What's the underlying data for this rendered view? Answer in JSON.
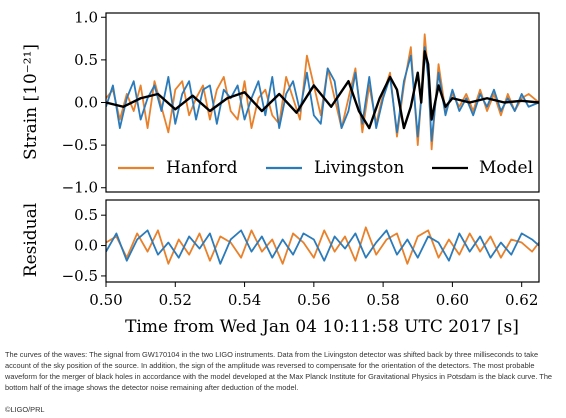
{
  "chart_data": [
    {
      "type": "line",
      "panel": "strain",
      "title": "",
      "xlabel": "",
      "ylabel": "Strain [10⁻²¹]",
      "xlim": [
        0.5,
        0.625
      ],
      "ylim": [
        -1.05,
        1.05
      ],
      "yticks": [
        -1.0,
        -0.5,
        0.0,
        0.5,
        1.0
      ],
      "ytick_labels": [
        "−1.0",
        "−0.5",
        "0.0",
        "0.5",
        "1.0"
      ],
      "legend": "bottom",
      "grid": false,
      "series": [
        {
          "name": "Hanford",
          "color": "#e8812c",
          "x": [
            0.5,
            0.502,
            0.504,
            0.506,
            0.508,
            0.51,
            0.512,
            0.514,
            0.516,
            0.518,
            0.52,
            0.522,
            0.524,
            0.526,
            0.528,
            0.53,
            0.532,
            0.534,
            0.536,
            0.538,
            0.54,
            0.542,
            0.544,
            0.546,
            0.548,
            0.55,
            0.552,
            0.554,
            0.556,
            0.558,
            0.56,
            0.562,
            0.564,
            0.566,
            0.568,
            0.57,
            0.572,
            0.574,
            0.576,
            0.578,
            0.58,
            0.582,
            0.584,
            0.586,
            0.588,
            0.59,
            0.591,
            0.592,
            0.593,
            0.594,
            0.596,
            0.598,
            0.6,
            0.602,
            0.604,
            0.606,
            0.608,
            0.61,
            0.612,
            0.614,
            0.616,
            0.618,
            0.62,
            0.622,
            0.625
          ],
          "y": [
            0.05,
            0.15,
            -0.2,
            0.1,
            -0.1,
            0.2,
            -0.3,
            0.25,
            -0.05,
            -0.35,
            0.15,
            0.25,
            -0.15,
            0.05,
            0.2,
            -0.2,
            0.15,
            0.3,
            -0.1,
            -0.2,
            0.25,
            -0.3,
            0.05,
            0.15,
            -0.15,
            -0.25,
            0.3,
            0.05,
            -0.2,
            0.55,
            0.2,
            -0.15,
            0.4,
            0.05,
            -0.3,
            0.05,
            0.4,
            -0.35,
            0.2,
            -0.25,
            0.1,
            0.35,
            -0.4,
            0.2,
            0.65,
            -0.5,
            0.05,
            0.8,
            0.35,
            -0.55,
            0.45,
            -0.1,
            0.1,
            -0.05,
            0.1,
            -0.1,
            0.15,
            -0.1,
            0.1,
            -0.15,
            0.1,
            -0.1,
            0.05,
            0.1,
            0.0
          ]
        },
        {
          "name": "Livingston",
          "color": "#2b7bba",
          "x": [
            0.5,
            0.502,
            0.504,
            0.506,
            0.508,
            0.51,
            0.512,
            0.514,
            0.516,
            0.518,
            0.52,
            0.522,
            0.524,
            0.526,
            0.528,
            0.53,
            0.532,
            0.534,
            0.536,
            0.538,
            0.54,
            0.542,
            0.544,
            0.546,
            0.548,
            0.55,
            0.552,
            0.554,
            0.556,
            0.558,
            0.56,
            0.562,
            0.564,
            0.566,
            0.568,
            0.57,
            0.572,
            0.574,
            0.576,
            0.578,
            0.58,
            0.582,
            0.584,
            0.586,
            0.588,
            0.59,
            0.591,
            0.592,
            0.593,
            0.594,
            0.596,
            0.598,
            0.6,
            0.602,
            0.604,
            0.606,
            0.608,
            0.61,
            0.612,
            0.614,
            0.616,
            0.618,
            0.62,
            0.622,
            0.625
          ],
          "y": [
            -0.05,
            0.2,
            -0.3,
            0.05,
            0.25,
            -0.2,
            0.05,
            0.2,
            -0.1,
            0.3,
            -0.25,
            0.1,
            0.25,
            -0.2,
            0.15,
            0.2,
            -0.25,
            0.15,
            0.05,
            0.2,
            -0.2,
            0.05,
            0.25,
            -0.15,
            0.3,
            -0.3,
            0.1,
            0.25,
            -0.1,
            0.35,
            -0.15,
            -0.25,
            0.4,
            0.25,
            -0.3,
            -0.1,
            0.35,
            -0.25,
            0.3,
            -0.3,
            0.05,
            0.3,
            -0.35,
            0.25,
            0.55,
            -0.4,
            0.05,
            0.65,
            0.3,
            -0.45,
            0.35,
            -0.15,
            0.15,
            -0.1,
            0.05,
            -0.15,
            0.1,
            -0.05,
            0.15,
            -0.1,
            0.05,
            -0.1,
            0.1,
            -0.05,
            0.0
          ]
        },
        {
          "name": "Model",
          "color": "#000000",
          "x": [
            0.5,
            0.505,
            0.51,
            0.515,
            0.52,
            0.525,
            0.53,
            0.535,
            0.54,
            0.545,
            0.55,
            0.555,
            0.56,
            0.565,
            0.57,
            0.573,
            0.576,
            0.579,
            0.582,
            0.584,
            0.586,
            0.588,
            0.59,
            0.591,
            0.592,
            0.593,
            0.594,
            0.596,
            0.598,
            0.6,
            0.605,
            0.61,
            0.615,
            0.62,
            0.625
          ],
          "y": [
            0.0,
            -0.05,
            0.05,
            0.1,
            -0.08,
            0.08,
            -0.1,
            0.05,
            0.12,
            -0.1,
            0.1,
            -0.12,
            0.2,
            -0.05,
            0.25,
            -0.1,
            -0.3,
            0.05,
            0.3,
            0.15,
            -0.3,
            -0.05,
            0.35,
            0.0,
            0.6,
            0.45,
            -0.2,
            0.2,
            -0.05,
            0.05,
            0.0,
            0.05,
            0.0,
            0.02,
            0.0
          ]
        }
      ]
    },
    {
      "type": "line",
      "panel": "residual",
      "title": "",
      "xlabel": "Time from Wed Jan 04 10:11:58 UTC 2017 [s]",
      "ylabel": "Residual",
      "xlim": [
        0.5,
        0.625
      ],
      "ylim": [
        -0.6,
        0.75
      ],
      "yticks": [
        -0.5,
        0.0,
        0.5
      ],
      "ytick_labels": [
        "−0.5",
        "0.0",
        "0.5"
      ],
      "xticks": [
        0.5,
        0.52,
        0.54,
        0.56,
        0.58,
        0.6,
        0.62
      ],
      "xtick_labels": [
        "0.50",
        "0.52",
        "0.54",
        "0.56",
        "0.58",
        "0.60",
        "0.62"
      ],
      "grid": false,
      "series": [
        {
          "name": "Hanford",
          "color": "#e8812c",
          "x": [
            0.5,
            0.503,
            0.506,
            0.509,
            0.512,
            0.515,
            0.518,
            0.521,
            0.524,
            0.527,
            0.53,
            0.533,
            0.536,
            0.539,
            0.542,
            0.545,
            0.548,
            0.551,
            0.554,
            0.557,
            0.56,
            0.563,
            0.566,
            0.569,
            0.572,
            0.575,
            0.578,
            0.581,
            0.584,
            0.587,
            0.59,
            0.593,
            0.596,
            0.599,
            0.602,
            0.605,
            0.608,
            0.611,
            0.614,
            0.617,
            0.62,
            0.623,
            0.625
          ],
          "y": [
            0.05,
            0.15,
            -0.2,
            0.2,
            -0.1,
            0.25,
            -0.3,
            0.1,
            -0.15,
            0.2,
            -0.25,
            0.15,
            0.05,
            -0.2,
            0.25,
            -0.1,
            0.1,
            -0.3,
            0.2,
            0.05,
            -0.2,
            0.25,
            -0.1,
            0.15,
            -0.25,
            0.3,
            -0.15,
            0.1,
            0.2,
            -0.3,
            0.15,
            0.25,
            -0.2,
            0.1,
            -0.15,
            0.2,
            -0.1,
            0.15,
            -0.2,
            0.1,
            0.05,
            -0.1,
            0.05
          ]
        },
        {
          "name": "Livingston",
          "color": "#2b7bba",
          "x": [
            0.5,
            0.503,
            0.506,
            0.509,
            0.512,
            0.515,
            0.518,
            0.521,
            0.524,
            0.527,
            0.53,
            0.533,
            0.536,
            0.539,
            0.542,
            0.545,
            0.548,
            0.551,
            0.554,
            0.557,
            0.56,
            0.563,
            0.566,
            0.569,
            0.572,
            0.575,
            0.578,
            0.581,
            0.584,
            0.587,
            0.59,
            0.593,
            0.596,
            0.599,
            0.602,
            0.605,
            0.608,
            0.611,
            0.614,
            0.617,
            0.62,
            0.623,
            0.625
          ],
          "y": [
            -0.1,
            0.2,
            -0.25,
            0.1,
            0.25,
            -0.15,
            0.05,
            -0.2,
            0.15,
            -0.05,
            0.2,
            -0.3,
            0.1,
            0.25,
            -0.1,
            0.15,
            -0.2,
            0.1,
            -0.15,
            0.2,
            0.1,
            -0.25,
            0.15,
            -0.05,
            0.2,
            -0.2,
            0.05,
            0.25,
            -0.15,
            0.1,
            -0.2,
            0.15,
            0.05,
            -0.25,
            0.2,
            -0.1,
            0.15,
            -0.2,
            0.05,
            -0.15,
            0.2,
            0.1,
            0.0
          ]
        }
      ]
    }
  ],
  "legend": {
    "hanford": "Hanford",
    "livingston": "Livingston",
    "model": "Model"
  },
  "caption": "The curves of the waves: The signal from GW170104 in the two LIGO instruments. Data from the Livingston detector was shifted back by three milliseconds to take account of the sky position of the source. In addition, the sign of the amplitude was reversed to compensate for the orientation of the detectors. The most probable waveform for the merger of black holes in accordance with the model developed at the Max Planck Institute for Gravitational Physics in Potsdam is the black curve. The bottom half of the image shows the detector noise remaining after deduction of the model.",
  "credit": "©LIGO/PRL"
}
